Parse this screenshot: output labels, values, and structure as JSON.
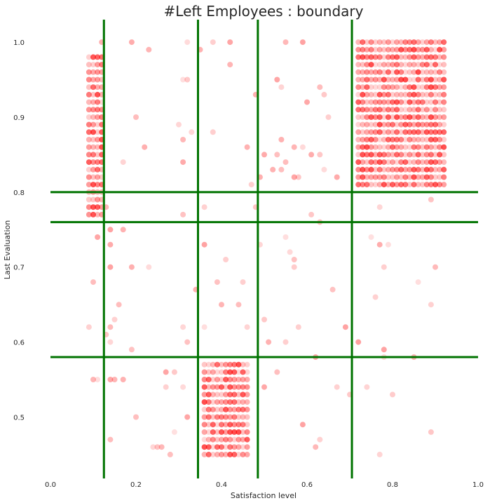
{
  "chart_data": {
    "type": "scatter",
    "title": "#Left Employees : boundary",
    "xlabel": "Satisfaction level",
    "ylabel": "Last Evaluation",
    "xlim": [
      0.0,
      1.0
    ],
    "ylim": [
      0.42,
      1.03
    ],
    "x_ticks": [
      "0.0",
      "0.2",
      "0.4",
      "0.6",
      "0.8",
      "1.0"
    ],
    "y_ticks": [
      "0.5",
      "0.6",
      "0.7",
      "0.8",
      "0.9",
      "1.0"
    ],
    "grid": false,
    "point_color": "#ff0000",
    "boundary_color": "#007300",
    "vertical_boundaries": [
      0.125,
      0.345,
      0.485,
      0.705
    ],
    "horizontal_boundaries": [
      0.8,
      0.76,
      0.58
    ],
    "clusters": [
      {
        "x": [
          0.09,
          0.12
        ],
        "y": [
          0.77,
          0.98
        ],
        "dense": true
      },
      {
        "x": [
          0.36,
          0.46
        ],
        "y": [
          0.45,
          0.57
        ],
        "dense": true
      },
      {
        "x": [
          0.72,
          0.92
        ],
        "y": [
          0.81,
          1.0
        ],
        "dense": true
      }
    ],
    "scattered_points": [
      [
        0.12,
        1.0
      ],
      [
        0.19,
        1.0
      ],
      [
        0.23,
        0.99
      ],
      [
        0.32,
        1.0
      ],
      [
        0.35,
        0.99
      ],
      [
        0.38,
        1.0
      ],
      [
        0.42,
        1.0
      ],
      [
        0.55,
        1.0
      ],
      [
        0.59,
        1.0
      ],
      [
        0.42,
        0.97
      ],
      [
        0.53,
        0.95
      ],
      [
        0.54,
        0.94
      ],
      [
        0.48,
        0.93
      ],
      [
        0.31,
        0.95
      ],
      [
        0.32,
        0.95
      ],
      [
        0.63,
        0.94
      ],
      [
        0.64,
        0.93
      ],
      [
        0.6,
        0.92
      ],
      [
        0.2,
        0.9
      ],
      [
        0.65,
        0.9
      ],
      [
        0.3,
        0.89
      ],
      [
        0.33,
        0.88
      ],
      [
        0.38,
        0.88
      ],
      [
        0.31,
        0.87
      ],
      [
        0.54,
        0.87
      ],
      [
        0.22,
        0.86
      ],
      [
        0.46,
        0.86
      ],
      [
        0.57,
        0.86
      ],
      [
        0.59,
        0.86
      ],
      [
        0.5,
        0.85
      ],
      [
        0.53,
        0.85
      ],
      [
        0.61,
        0.85
      ],
      [
        0.63,
        0.85
      ],
      [
        0.55,
        0.84
      ],
      [
        0.17,
        0.84
      ],
      [
        0.31,
        0.84
      ],
      [
        0.47,
        0.81
      ],
      [
        0.52,
        0.83
      ],
      [
        0.54,
        0.83
      ],
      [
        0.64,
        0.83
      ],
      [
        0.49,
        0.82
      ],
      [
        0.57,
        0.82
      ],
      [
        0.58,
        0.82
      ],
      [
        0.67,
        0.82
      ],
      [
        0.89,
        0.79
      ],
      [
        0.13,
        0.78
      ],
      [
        0.36,
        0.78
      ],
      [
        0.48,
        0.78
      ],
      [
        0.77,
        0.78
      ],
      [
        0.31,
        0.77
      ],
      [
        0.61,
        0.77
      ],
      [
        0.63,
        0.76
      ],
      [
        0.14,
        0.75
      ],
      [
        0.17,
        0.75
      ],
      [
        0.11,
        0.74
      ],
      [
        0.55,
        0.74
      ],
      [
        0.14,
        0.73
      ],
      [
        0.36,
        0.73
      ],
      [
        0.49,
        0.73
      ],
      [
        0.56,
        0.72
      ],
      [
        0.75,
        0.74
      ],
      [
        0.77,
        0.73
      ],
      [
        0.79,
        0.73
      ],
      [
        0.57,
        0.71
      ],
      [
        0.41,
        0.71
      ],
      [
        0.14,
        0.7
      ],
      [
        0.19,
        0.7
      ],
      [
        0.23,
        0.7
      ],
      [
        0.57,
        0.7
      ],
      [
        0.78,
        0.7
      ],
      [
        0.9,
        0.7
      ],
      [
        0.1,
        0.68
      ],
      [
        0.39,
        0.68
      ],
      [
        0.45,
        0.68
      ],
      [
        0.86,
        0.68
      ],
      [
        0.34,
        0.67
      ],
      [
        0.66,
        0.67
      ],
      [
        0.76,
        0.66
      ],
      [
        0.16,
        0.65
      ],
      [
        0.4,
        0.65
      ],
      [
        0.44,
        0.65
      ],
      [
        0.89,
        0.65
      ],
      [
        0.15,
        0.63
      ],
      [
        0.5,
        0.63
      ],
      [
        0.09,
        0.62
      ],
      [
        0.14,
        0.62
      ],
      [
        0.31,
        0.62
      ],
      [
        0.36,
        0.62
      ],
      [
        0.46,
        0.62
      ],
      [
        0.58,
        0.62
      ],
      [
        0.69,
        0.62
      ],
      [
        0.13,
        0.61
      ],
      [
        0.14,
        0.6
      ],
      [
        0.32,
        0.6
      ],
      [
        0.51,
        0.6
      ],
      [
        0.55,
        0.6
      ],
      [
        0.72,
        0.6
      ],
      [
        0.19,
        0.59
      ],
      [
        0.78,
        0.59
      ],
      [
        0.62,
        0.58
      ],
      [
        0.78,
        0.58
      ],
      [
        0.85,
        0.58
      ],
      [
        0.1,
        0.55
      ],
      [
        0.11,
        0.55
      ],
      [
        0.14,
        0.55
      ],
      [
        0.15,
        0.55
      ],
      [
        0.17,
        0.55
      ],
      [
        0.27,
        0.56
      ],
      [
        0.29,
        0.56
      ],
      [
        0.53,
        0.56
      ],
      [
        0.27,
        0.54
      ],
      [
        0.31,
        0.54
      ],
      [
        0.5,
        0.54
      ],
      [
        0.67,
        0.54
      ],
      [
        0.7,
        0.53
      ],
      [
        0.74,
        0.54
      ],
      [
        0.8,
        0.53
      ],
      [
        0.2,
        0.5
      ],
      [
        0.32,
        0.5
      ],
      [
        0.59,
        0.49
      ],
      [
        0.29,
        0.48
      ],
      [
        0.89,
        0.48
      ],
      [
        0.14,
        0.47
      ],
      [
        0.63,
        0.47
      ],
      [
        0.24,
        0.46
      ],
      [
        0.25,
        0.46
      ],
      [
        0.26,
        0.46
      ],
      [
        0.28,
        0.45
      ],
      [
        0.77,
        0.45
      ],
      [
        0.62,
        0.46
      ]
    ]
  }
}
